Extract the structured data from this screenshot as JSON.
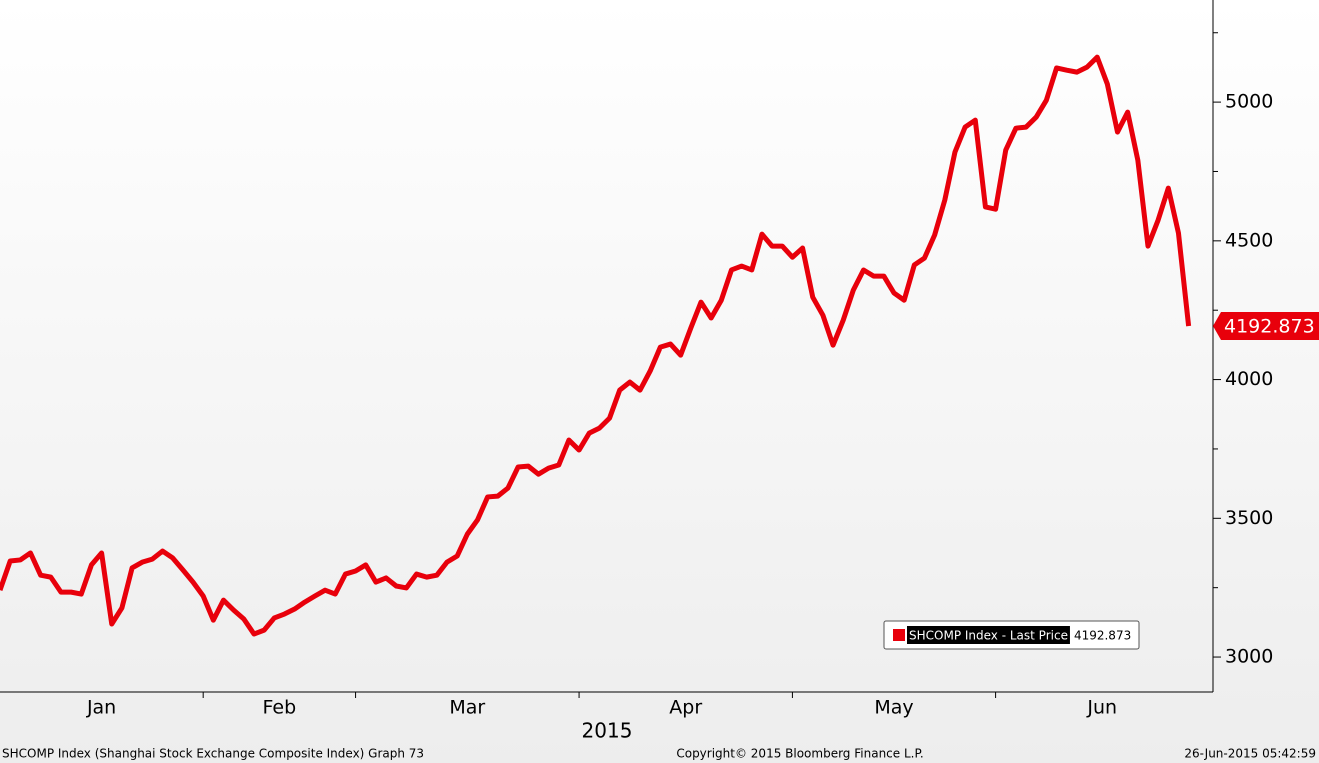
{
  "chart_data": {
    "type": "line",
    "x_axis_label": "2015",
    "footer_left": "SHCOMP Index (Shanghai Stock Exchange Composite Index) Graph 73",
    "footer_center": "Copyright© 2015 Bloomberg Finance L.P.",
    "footer_right": "26-Jun-2015 05:42:59",
    "xlim": [
      0,
      119.4
    ],
    "xticks": [
      20,
      35,
      57,
      78,
      98
    ],
    "month_labels": [
      {
        "value": 10,
        "label": "Jan"
      },
      {
        "value": 27.5,
        "label": "Feb"
      },
      {
        "value": 46,
        "label": "Mar"
      },
      {
        "value": 67.5,
        "label": "Apr"
      },
      {
        "value": 88,
        "label": "May"
      },
      {
        "value": 108.5,
        "label": "Jun"
      }
    ],
    "ylim": [
      2874,
      5368
    ],
    "yticks": [
      3000,
      3500,
      4000,
      4500,
      5000
    ],
    "yticks_minor": [
      3250,
      3750,
      4250,
      4750,
      5250
    ],
    "series": [
      {
        "name": "SHCOMP Index - Last Price",
        "color": "#e8000b",
        "values": [
          3241,
          3346,
          3350,
          3375,
          3295,
          3288,
          3234,
          3234,
          3227,
          3332,
          3375,
          3119,
          3177,
          3321,
          3342,
          3353,
          3382,
          3357,
          3314,
          3270,
          3220,
          3133,
          3205,
          3169,
          3137,
          3083,
          3097,
          3141,
          3155,
          3173,
          3198,
          3220,
          3241,
          3227,
          3299,
          3310,
          3332,
          3270,
          3285,
          3256,
          3249,
          3299,
          3288,
          3295,
          3342,
          3364,
          3443,
          3494,
          3577,
          3580,
          3609,
          3685,
          3688,
          3659,
          3681,
          3692,
          3782,
          3746,
          3807,
          3825,
          3861,
          3962,
          3991,
          3962,
          4031,
          4117,
          4128,
          4088,
          4186,
          4279,
          4222,
          4286,
          4395,
          4409,
          4395,
          4524,
          4481,
          4481,
          4441,
          4474,
          4297,
          4232,
          4124,
          4214,
          4323,
          4395,
          4373,
          4373,
          4312,
          4286,
          4413,
          4438,
          4521,
          4647,
          4820,
          4910,
          4935,
          4622,
          4614,
          4827,
          4906,
          4910,
          4946,
          5007,
          5123,
          5115,
          5108,
          5126,
          5162,
          5065,
          4892,
          4964,
          4791,
          4481,
          4575,
          4690,
          4528,
          4192.873
        ]
      }
    ]
  }
}
